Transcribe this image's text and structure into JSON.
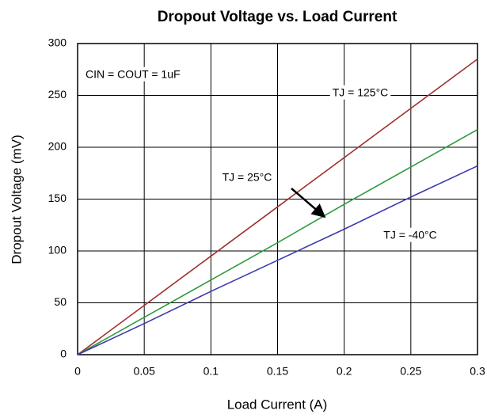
{
  "chart_data": {
    "type": "line",
    "title": "Dropout Voltage vs. Load Current",
    "x_label": "Load Current (A)",
    "y_label": "Dropout Voltage  (mV)",
    "annotation": "CIN = COUT = 1uF",
    "x": [
      0,
      0.05,
      0.1,
      0.15,
      0.2,
      0.25,
      0.3
    ],
    "series": [
      {
        "name": "TJ = 125°C",
        "color": "#a03030",
        "values": [
          0,
          47.5,
          95,
          142.5,
          190,
          237.5,
          285
        ]
      },
      {
        "name": "TJ = 25°C",
        "color": "#2e9a3e",
        "values": [
          0,
          36,
          72,
          108,
          145,
          181,
          217
        ]
      },
      {
        "name": "TJ = -40°C",
        "color": "#3a3ab0",
        "values": [
          0,
          30,
          61,
          91,
          121,
          152,
          182
        ]
      }
    ],
    "xlim": [
      0,
      0.3
    ],
    "xticks": [
      0,
      0.05,
      0.1,
      0.15,
      0.2,
      0.25,
      0.3
    ],
    "ylim": [
      0,
      300
    ],
    "yticks": [
      0,
      50,
      100,
      150,
      200,
      250,
      300
    ],
    "grid": true
  }
}
